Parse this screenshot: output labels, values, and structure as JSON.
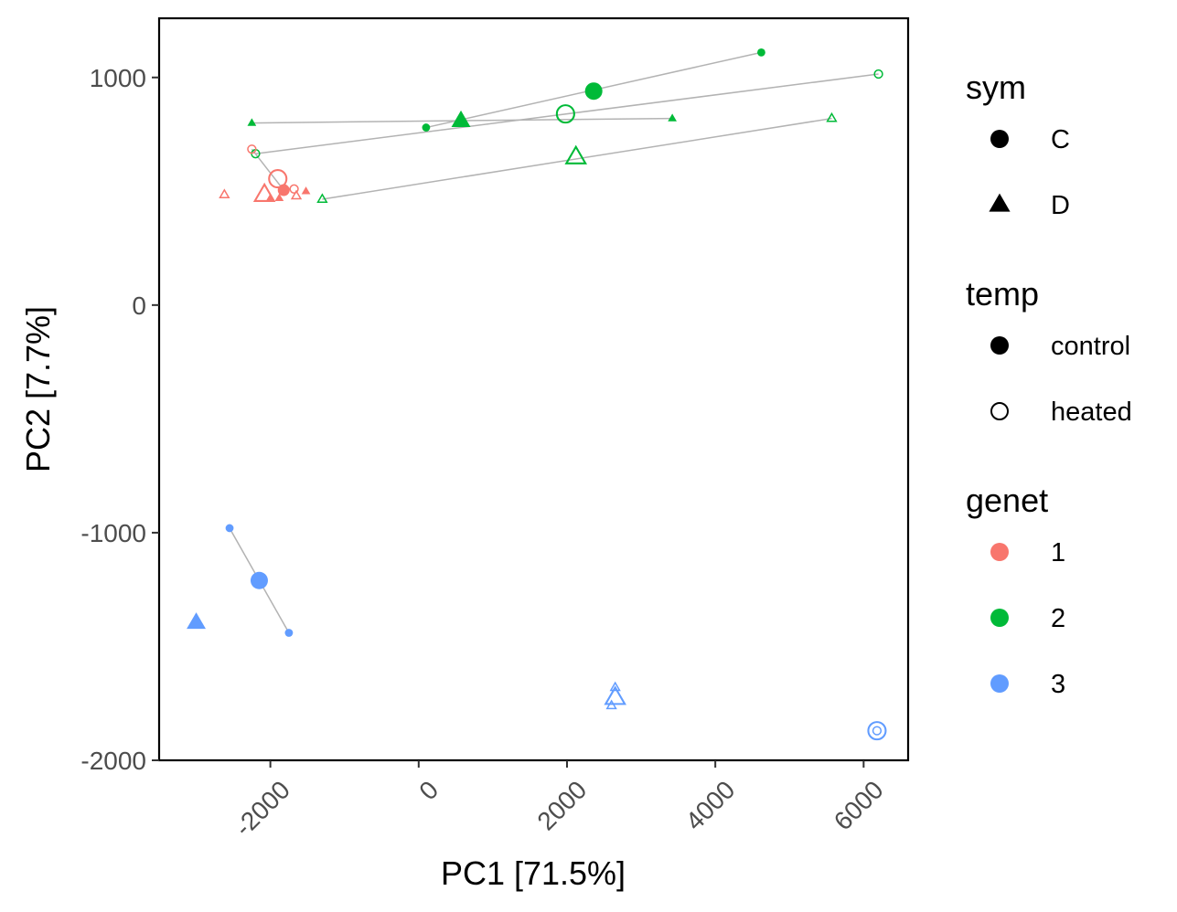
{
  "chart_data": {
    "type": "scatter",
    "xlabel": "PC1 [71.5%]",
    "ylabel": "PC2 [7.7%]",
    "xlim": [
      -3500,
      6600
    ],
    "ylim": [
      -2000,
      1260
    ],
    "xticks": [
      -2000,
      0,
      2000,
      4000,
      6000
    ],
    "yticks": [
      -2000,
      -1000,
      0,
      1000
    ],
    "grid": false,
    "legend_position": "right",
    "colors": {
      "1": "#F8766D",
      "2": "#00BA38",
      "3": "#619CFF"
    },
    "legends": [
      {
        "title": "sym",
        "items": [
          {
            "label": "C",
            "shape": "circle"
          },
          {
            "label": "D",
            "shape": "triangle"
          }
        ]
      },
      {
        "title": "temp",
        "items": [
          {
            "label": "control",
            "fill": "solid"
          },
          {
            "label": "heated",
            "fill": "hollow"
          }
        ]
      },
      {
        "title": "genet",
        "items": [
          {
            "label": "1",
            "color": "#F8766D"
          },
          {
            "label": "2",
            "color": "#00BA38"
          },
          {
            "label": "3",
            "color": "#619CFF"
          }
        ]
      }
    ],
    "segments": [
      {
        "genet": "2",
        "x1": 100,
        "y1": 780,
        "x2": 4620,
        "y2": 1110
      },
      {
        "genet": "2",
        "x1": -2250,
        "y1": 800,
        "x2": 3420,
        "y2": 820
      },
      {
        "genet": "2",
        "x1": -2200,
        "y1": 665,
        "x2": 6200,
        "y2": 1015
      },
      {
        "genet": "2",
        "x1": -1300,
        "y1": 465,
        "x2": 5570,
        "y2": 820
      },
      {
        "genet": "1",
        "x1": -2250,
        "y1": 685,
        "x2": -1820,
        "y2": 505
      },
      {
        "genet": "3",
        "x1": -2550,
        "y1": -980,
        "x2": -1750,
        "y2": -1440
      }
    ],
    "points": [
      {
        "x": 100,
        "y": 780,
        "sym": "C",
        "temp": "control",
        "genet": "2",
        "size": "small"
      },
      {
        "x": 4620,
        "y": 1110,
        "sym": "C",
        "temp": "control",
        "genet": "2",
        "size": "small"
      },
      {
        "x": 2360,
        "y": 940,
        "sym": "C",
        "temp": "control",
        "genet": "2",
        "size": "large"
      },
      {
        "x": 1980,
        "y": 840,
        "sym": "C",
        "temp": "heated",
        "genet": "2",
        "size": "large"
      },
      {
        "x": 6200,
        "y": 1015,
        "sym": "C",
        "temp": "heated",
        "genet": "2",
        "size": "small"
      },
      {
        "x": -2200,
        "y": 665,
        "sym": "C",
        "temp": "heated",
        "genet": "2",
        "size": "small"
      },
      {
        "x": -2250,
        "y": 800,
        "sym": "D",
        "temp": "control",
        "genet": "2",
        "size": "small"
      },
      {
        "x": 3420,
        "y": 820,
        "sym": "D",
        "temp": "control",
        "genet": "2",
        "size": "small"
      },
      {
        "x": 570,
        "y": 810,
        "sym": "D",
        "temp": "control",
        "genet": "2",
        "size": "large"
      },
      {
        "x": 2120,
        "y": 650,
        "sym": "D",
        "temp": "heated",
        "genet": "2",
        "size": "large"
      },
      {
        "x": 5570,
        "y": 820,
        "sym": "D",
        "temp": "heated",
        "genet": "2",
        "size": "small"
      },
      {
        "x": -1300,
        "y": 465,
        "sym": "D",
        "temp": "heated",
        "genet": "2",
        "size": "small"
      },
      {
        "x": -2250,
        "y": 685,
        "sym": "C",
        "temp": "heated",
        "genet": "1",
        "size": "small"
      },
      {
        "x": -1900,
        "y": 555,
        "sym": "C",
        "temp": "heated",
        "genet": "1",
        "size": "large"
      },
      {
        "x": -1680,
        "y": 510,
        "sym": "C",
        "temp": "heated",
        "genet": "1",
        "size": "small"
      },
      {
        "x": -1820,
        "y": 505,
        "sym": "C",
        "temp": "control",
        "genet": "1",
        "size": "medium"
      },
      {
        "x": -2620,
        "y": 485,
        "sym": "D",
        "temp": "heated",
        "genet": "1",
        "size": "small"
      },
      {
        "x": -2080,
        "y": 485,
        "sym": "D",
        "temp": "heated",
        "genet": "1",
        "size": "large"
      },
      {
        "x": -1650,
        "y": 480,
        "sym": "D",
        "temp": "heated",
        "genet": "1",
        "size": "small"
      },
      {
        "x": -2000,
        "y": 470,
        "sym": "D",
        "temp": "control",
        "genet": "1",
        "size": "small"
      },
      {
        "x": -1880,
        "y": 470,
        "sym": "D",
        "temp": "control",
        "genet": "1",
        "size": "small"
      },
      {
        "x": -1520,
        "y": 500,
        "sym": "D",
        "temp": "control",
        "genet": "1",
        "size": "small"
      },
      {
        "x": -2550,
        "y": -980,
        "sym": "C",
        "temp": "control",
        "genet": "3",
        "size": "small"
      },
      {
        "x": -2150,
        "y": -1210,
        "sym": "C",
        "temp": "control",
        "genet": "3",
        "size": "large"
      },
      {
        "x": -1750,
        "y": -1440,
        "sym": "C",
        "temp": "control",
        "genet": "3",
        "size": "small"
      },
      {
        "x": -3000,
        "y": -1395,
        "sym": "D",
        "temp": "control",
        "genet": "3",
        "size": "large"
      },
      {
        "x": 2650,
        "y": -1725,
        "sym": "D",
        "temp": "heated",
        "genet": "3",
        "size": "large"
      },
      {
        "x": 2650,
        "y": -1680,
        "sym": "D",
        "temp": "heated",
        "genet": "3",
        "size": "small"
      },
      {
        "x": 2600,
        "y": -1760,
        "sym": "D",
        "temp": "heated",
        "genet": "3",
        "size": "small"
      },
      {
        "x": 6180,
        "y": -1870,
        "sym": "C",
        "temp": "heated",
        "genet": "3",
        "size": "large"
      },
      {
        "x": 6180,
        "y": -1870,
        "sym": "C",
        "temp": "heated",
        "genet": "3",
        "size": "small"
      }
    ]
  }
}
